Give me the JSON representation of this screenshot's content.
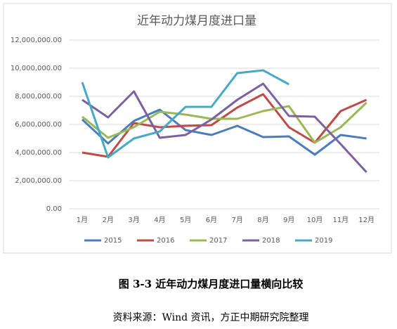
{
  "chart_data": {
    "type": "line",
    "title": "近年动力煤月度进口量",
    "categories": [
      "1月",
      "2月",
      "3月",
      "4月",
      "5月",
      "6月",
      "7月",
      "8月",
      "9月",
      "10月",
      "11月",
      "12月"
    ],
    "series": [
      {
        "name": "2015",
        "color": "#4a7ebb",
        "values": [
          6350000,
          4650000,
          6250000,
          7050000,
          5600000,
          5250000,
          5900000,
          5100000,
          5150000,
          3850000,
          5250000,
          5000000
        ]
      },
      {
        "name": "2016",
        "color": "#be4b48",
        "values": [
          4000000,
          3700000,
          6100000,
          5800000,
          5900000,
          5950000,
          7200000,
          8150000,
          5800000,
          4700000,
          6950000,
          7750000
        ]
      },
      {
        "name": "2017",
        "color": "#98b954",
        "values": [
          6550000,
          5050000,
          5800000,
          6900000,
          6700000,
          6400000,
          6400000,
          6950000,
          7300000,
          4700000,
          5800000,
          7550000
        ]
      },
      {
        "name": "2018",
        "color": "#7d60a0",
        "values": [
          7750000,
          6500000,
          8350000,
          5050000,
          5250000,
          6350000,
          7750000,
          8900000,
          6600000,
          6550000,
          4600000,
          2600000
        ]
      },
      {
        "name": "2019",
        "color": "#46aac5",
        "values": [
          9000000,
          3650000,
          5000000,
          5500000,
          7250000,
          7250000,
          9650000,
          9850000,
          8850000,
          null,
          null,
          null
        ]
      }
    ],
    "ylim": [
      0,
      12000000
    ],
    "yticks": [
      {
        "value": 0,
        "label": "0.00"
      },
      {
        "value": 2000000,
        "label": "2,000,000.00"
      },
      {
        "value": 4000000,
        "label": "4,000,000.00"
      },
      {
        "value": 6000000,
        "label": "6,000,000.00"
      },
      {
        "value": 8000000,
        "label": "8,000,000.00"
      },
      {
        "value": 10000000,
        "label": "10,000,000.00"
      },
      {
        "value": 12000000,
        "label": "12,000,000.00"
      }
    ],
    "grid": true,
    "legend": "bottom"
  },
  "caption": "图 3-3  近年动力煤月度进口量横向比较",
  "source": "资料来源：Wind 资讯，方正中期研究院整理"
}
